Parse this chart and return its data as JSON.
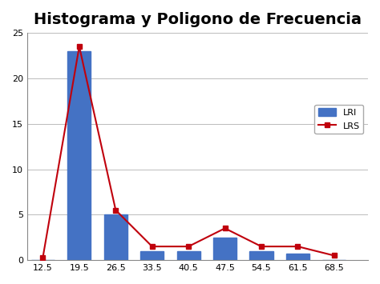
{
  "title": "Histograma y Poligono de Frecuencia",
  "x_labels": [
    12.5,
    19.5,
    26.5,
    33.5,
    40.5,
    47.5,
    54.5,
    61.5,
    68.5
  ],
  "bar_values": [
    0,
    23,
    5,
    1,
    1,
    2.5,
    1,
    0.75,
    0
  ],
  "line_values": [
    0.3,
    23.5,
    5.5,
    1.5,
    1.5,
    3.5,
    1.5,
    1.5,
    0.5
  ],
  "bar_color": "#4472C4",
  "line_color": "#C0000C",
  "ylim": [
    0,
    25
  ],
  "yticks": [
    0,
    5,
    10,
    15,
    20,
    25
  ],
  "bar_width": 4.5,
  "legend_labels": [
    "LRI",
    "LRS"
  ],
  "title_fontsize": 14,
  "background_color": "#FFFFFF",
  "xlim_left": 9.5,
  "xlim_right": 75
}
